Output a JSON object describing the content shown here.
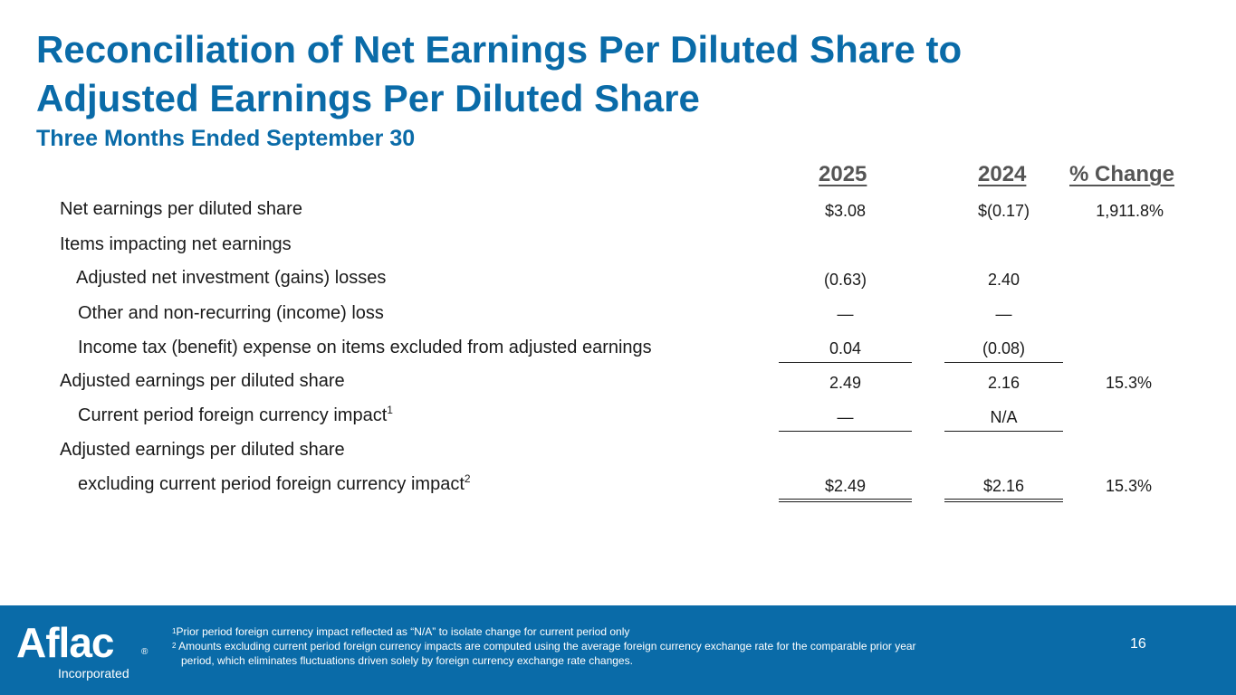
{
  "header": {
    "title": "Reconciliation of Net Earnings Per Diluted Share to Adjusted Earnings Per Diluted Share",
    "subtitle": "Three Months Ended September 30"
  },
  "table": {
    "columns": [
      "2025",
      "2024",
      "% Change"
    ],
    "rows": [
      {
        "label": "Net earnings per diluted share",
        "v2025": "$3.08",
        "v2024": "$(0.17)",
        "change": "1,911.8%"
      },
      {
        "label": "Items impacting net earnings",
        "v2025": "",
        "v2024": "",
        "change": ""
      },
      {
        "label": "Adjusted net investment (gains) losses",
        "v2025": "(0.63)",
        "v2024": "2.40",
        "change": ""
      },
      {
        "label": "Other and non-recurring (income) loss",
        "v2025": "—",
        "v2024": "—",
        "change": ""
      },
      {
        "label": "Income tax (benefit) expense on items excluded from adjusted earnings",
        "v2025": "0.04",
        "v2024": "(0.08)",
        "change": ""
      },
      {
        "label": "Adjusted earnings per diluted share",
        "v2025": "2.49",
        "v2024": "2.16",
        "change": "15.3%"
      },
      {
        "label": "Current period foreign currency impact",
        "sup": "1",
        "v2025": "—",
        "v2024": "N/A",
        "change": ""
      },
      {
        "label": "Adjusted earnings per diluted share",
        "v2025": "",
        "v2024": "",
        "change": ""
      },
      {
        "label": "excluding current period foreign currency impact",
        "sup": "2",
        "v2025": "$2.49",
        "v2024": "$2.16",
        "change": "15.3%"
      }
    ]
  },
  "footer": {
    "logo_text": "Aflac",
    "logo_reg": "®",
    "logo_sub": "Incorporated",
    "footnote1_num": "1",
    "footnote1": "Prior period foreign currency impact reflected as “N/A” to isolate change for current period only",
    "footnote2_num": "2",
    "footnote2": " Amounts excluding current period foreign currency impacts are computed using the average foreign currency exchange rate for the comparable prior year",
    "footnote2_cont": "period, which eliminates fluctuations driven solely by foreign currency exchange rate changes.",
    "page_number": "16"
  },
  "colors": {
    "brand_blue": "#0a6ba8",
    "heading_gray": "#555555",
    "text": "#1a1a1a"
  }
}
